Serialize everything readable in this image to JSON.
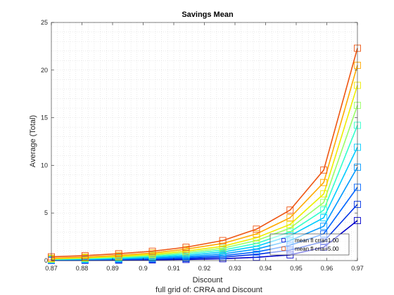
{
  "figure": {
    "caption": "full grid of: CRRA and Discount"
  },
  "chart_data": {
    "type": "line",
    "title": "Savings Mean",
    "xlabel": "Discount",
    "ylabel": "Average (Total)",
    "xlim": [
      0.87,
      0.97
    ],
    "ylim": [
      0,
      25
    ],
    "xticks": [
      "0.87",
      "0.88",
      "0.89",
      "0.9",
      "0.91",
      "0.92",
      "0.93",
      "0.94",
      "0.95",
      "0.96",
      "0.97"
    ],
    "yticks": [
      "0",
      "5",
      "10",
      "15",
      "20",
      "25"
    ],
    "grid": "minor dotted",
    "legend_position": "bottom-right",
    "legend": [
      {
        "label": "mean fl crra=1.00",
        "color": "#0000cc",
        "marker": "square"
      },
      {
        "label": "mean fl crra=5.00",
        "color": "#ee5511",
        "marker": "square"
      }
    ],
    "x": [
      0.87,
      0.881,
      0.892,
      0.903,
      0.914,
      0.926,
      0.937,
      0.948,
      0.959,
      0.97
    ],
    "series": [
      {
        "color": "#0000cc",
        "values": [
          0.02,
          0.03,
          0.05,
          0.08,
          0.12,
          0.2,
          0.35,
          0.6,
          1.4,
          4.2
        ]
      },
      {
        "color": "#0033e6",
        "values": [
          0.04,
          0.06,
          0.09,
          0.14,
          0.22,
          0.36,
          0.65,
          1.1,
          2.0,
          5.9
        ]
      },
      {
        "color": "#0066ff",
        "values": [
          0.06,
          0.09,
          0.13,
          0.2,
          0.31,
          0.52,
          0.9,
          1.6,
          2.8,
          7.7
        ]
      },
      {
        "color": "#0099ff",
        "values": [
          0.08,
          0.12,
          0.18,
          0.27,
          0.42,
          0.7,
          1.2,
          2.1,
          3.6,
          9.8
        ]
      },
      {
        "color": "#00ccff",
        "values": [
          0.1,
          0.16,
          0.24,
          0.36,
          0.55,
          0.9,
          1.5,
          2.6,
          4.5,
          11.9
        ]
      },
      {
        "color": "#33ffcc",
        "values": [
          0.13,
          0.2,
          0.3,
          0.45,
          0.7,
          1.1,
          1.8,
          3.0,
          5.3,
          14.2
        ]
      },
      {
        "color": "#99ff66",
        "values": [
          0.16,
          0.25,
          0.37,
          0.56,
          0.85,
          1.3,
          2.1,
          3.4,
          6.1,
          16.3
        ]
      },
      {
        "color": "#eeee00",
        "values": [
          0.2,
          0.3,
          0.45,
          0.67,
          1.0,
          1.5,
          2.4,
          3.8,
          7.0,
          18.4
        ]
      },
      {
        "color": "#ffaa00",
        "values": [
          0.25,
          0.37,
          0.55,
          0.8,
          1.2,
          1.8,
          2.8,
          4.5,
          8.2,
          20.5
        ]
      },
      {
        "color": "#ee5511",
        "values": [
          0.4,
          0.52,
          0.72,
          0.98,
          1.4,
          2.1,
          3.3,
          5.3,
          9.5,
          22.3
        ]
      }
    ]
  }
}
